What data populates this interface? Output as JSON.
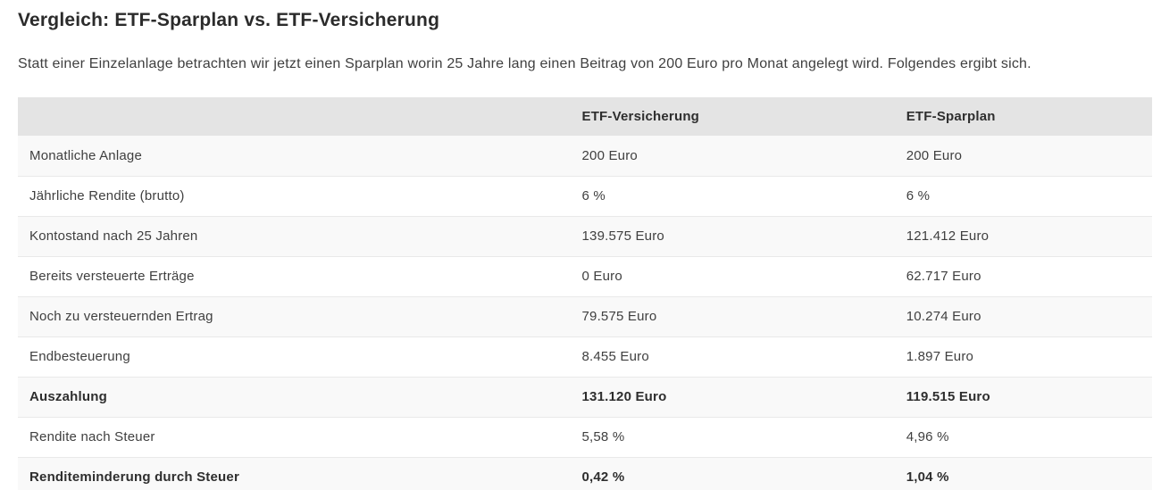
{
  "page": {
    "title": "Vergleich: ETF-Sparplan vs. ETF-Versicherung",
    "intro": "Statt einer Einzelanlage betrachten wir jetzt einen Sparplan worin 25 Jahre lang einen Beitrag von 200 Euro pro Monat angelegt wird. Folgendes ergibt sich."
  },
  "table": {
    "columns": {
      "label": "",
      "versicherung": "ETF-Versicherung",
      "sparplan": "ETF-Sparplan"
    },
    "rows": [
      {
        "label": "Monatliche Anlage",
        "versicherung": "200 Euro",
        "sparplan": "200 Euro",
        "bold": false
      },
      {
        "label": "Jährliche Rendite (brutto)",
        "versicherung": "6 %",
        "sparplan": "6 %",
        "bold": false
      },
      {
        "label": "Kontostand nach 25 Jahren",
        "versicherung": "139.575 Euro",
        "sparplan": "121.412 Euro",
        "bold": false
      },
      {
        "label": "Bereits versteuerte Erträge",
        "versicherung": "0 Euro",
        "sparplan": "62.717 Euro",
        "bold": false
      },
      {
        "label": "Noch zu versteuernden Ertrag",
        "versicherung": "79.575 Euro",
        "sparplan": "10.274 Euro",
        "bold": false
      },
      {
        "label": "Endbesteuerung",
        "versicherung": "8.455 Euro",
        "sparplan": "1.897 Euro",
        "bold": false
      },
      {
        "label": "Auszahlung",
        "versicherung": "131.120 Euro",
        "sparplan": "119.515 Euro",
        "bold": true
      },
      {
        "label": "Rendite nach Steuer",
        "versicherung": "5,58 %",
        "sparplan": "4,96 %",
        "bold": false
      },
      {
        "label": "Renditeminderung durch Steuer",
        "versicherung": "0,42 %",
        "sparplan": "1,04 %",
        "bold": true
      }
    ]
  },
  "colors": {
    "header_bg": "#e4e4e4",
    "stripe_bg": "#f9f9f9",
    "row_border": "#e9e9e9",
    "body_text": "#3f3f3f",
    "heading_text": "#2b2b2b"
  }
}
